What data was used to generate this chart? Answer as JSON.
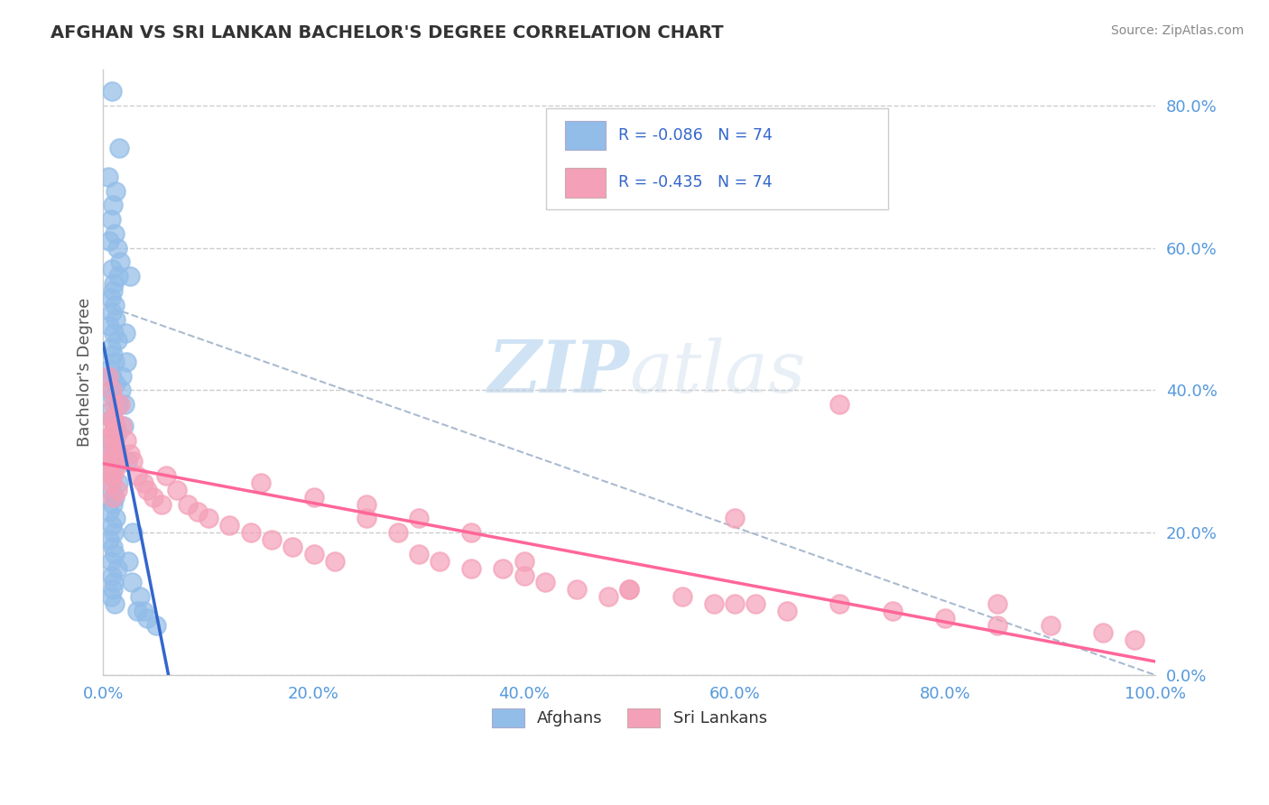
{
  "title": "AFGHAN VS SRI LANKAN BACHELOR'S DEGREE CORRELATION CHART",
  "source": "Source: ZipAtlas.com",
  "ylabel": "Bachelor's Degree",
  "watermark_zip": "ZIP",
  "watermark_atlas": "atlas",
  "legend_r1": "R = -0.086",
  "legend_n1": "N = 74",
  "legend_r2": "R = -0.435",
  "legend_n2": "N = 74",
  "legend_label1": "Afghans",
  "legend_label2": "Sri Lankans",
  "xlim": [
    0.0,
    1.0
  ],
  "ylim": [
    0.0,
    0.85
  ],
  "x_tick_labels": [
    "0.0%",
    "20.0%",
    "40.0%",
    "60.0%",
    "80.0%",
    "100.0%"
  ],
  "y_tick_labels_right": [
    "0.0%",
    "20.0%",
    "40.0%",
    "60.0%",
    "80.0%"
  ],
  "color_afghan": "#92BDE8",
  "color_srilankan": "#F4A0B8",
  "color_trend_afghan": "#3366CC",
  "color_trend_srilankan": "#FF6699",
  "color_dashed": "#AABBD0",
  "background": "#FFFFFF",
  "grid_color": "#CCCCCC",
  "afghan_x": [
    0.008,
    0.015,
    0.005,
    0.012,
    0.009,
    0.007,
    0.011,
    0.006,
    0.013,
    0.016,
    0.008,
    0.014,
    0.01,
    0.009,
    0.007,
    0.011,
    0.008,
    0.012,
    0.006,
    0.01,
    0.013,
    0.007,
    0.009,
    0.011,
    0.006,
    0.008,
    0.012,
    0.007,
    0.009,
    0.014,
    0.006,
    0.008,
    0.011,
    0.013,
    0.007,
    0.009,
    0.012,
    0.005,
    0.01,
    0.008,
    0.014,
    0.007,
    0.011,
    0.009,
    0.006,
    0.012,
    0.008,
    0.01,
    0.006,
    0.009,
    0.011,
    0.007,
    0.013,
    0.008,
    0.01,
    0.009,
    0.007,
    0.011,
    0.021,
    0.017,
    0.019,
    0.023,
    0.025,
    0.018,
    0.02,
    0.022,
    0.028,
    0.024,
    0.027,
    0.035,
    0.032,
    0.038,
    0.042,
    0.05
  ],
  "afghan_y": [
    0.82,
    0.74,
    0.7,
    0.68,
    0.66,
    0.64,
    0.62,
    0.61,
    0.6,
    0.58,
    0.57,
    0.56,
    0.55,
    0.54,
    0.53,
    0.52,
    0.51,
    0.5,
    0.49,
    0.48,
    0.47,
    0.46,
    0.45,
    0.44,
    0.43,
    0.42,
    0.41,
    0.4,
    0.39,
    0.38,
    0.37,
    0.36,
    0.35,
    0.34,
    0.33,
    0.32,
    0.31,
    0.3,
    0.29,
    0.28,
    0.27,
    0.26,
    0.25,
    0.24,
    0.23,
    0.22,
    0.21,
    0.2,
    0.19,
    0.18,
    0.17,
    0.16,
    0.15,
    0.14,
    0.13,
    0.12,
    0.11,
    0.1,
    0.48,
    0.4,
    0.35,
    0.3,
    0.56,
    0.42,
    0.38,
    0.44,
    0.2,
    0.16,
    0.13,
    0.11,
    0.09,
    0.09,
    0.08,
    0.07
  ],
  "srilankan_x": [
    0.005,
    0.008,
    0.01,
    0.007,
    0.009,
    0.006,
    0.012,
    0.008,
    0.011,
    0.014,
    0.007,
    0.01,
    0.006,
    0.009,
    0.013,
    0.008,
    0.011,
    0.012,
    0.007,
    0.009,
    0.016,
    0.018,
    0.022,
    0.025,
    0.028,
    0.032,
    0.038,
    0.042,
    0.048,
    0.055,
    0.06,
    0.07,
    0.08,
    0.09,
    0.1,
    0.12,
    0.14,
    0.16,
    0.18,
    0.2,
    0.22,
    0.25,
    0.28,
    0.3,
    0.32,
    0.35,
    0.38,
    0.4,
    0.42,
    0.45,
    0.48,
    0.5,
    0.55,
    0.58,
    0.6,
    0.62,
    0.65,
    0.7,
    0.75,
    0.8,
    0.85,
    0.9,
    0.95,
    0.98,
    0.15,
    0.2,
    0.25,
    0.3,
    0.35,
    0.4,
    0.5,
    0.6,
    0.7,
    0.85
  ],
  "srilankan_y": [
    0.42,
    0.4,
    0.38,
    0.36,
    0.34,
    0.32,
    0.35,
    0.3,
    0.33,
    0.31,
    0.28,
    0.36,
    0.3,
    0.28,
    0.26,
    0.34,
    0.32,
    0.29,
    0.27,
    0.25,
    0.38,
    0.35,
    0.33,
    0.31,
    0.3,
    0.28,
    0.27,
    0.26,
    0.25,
    0.24,
    0.28,
    0.26,
    0.24,
    0.23,
    0.22,
    0.21,
    0.2,
    0.19,
    0.18,
    0.17,
    0.16,
    0.22,
    0.2,
    0.17,
    0.16,
    0.15,
    0.15,
    0.14,
    0.13,
    0.12,
    0.11,
    0.12,
    0.11,
    0.1,
    0.22,
    0.1,
    0.09,
    0.1,
    0.09,
    0.08,
    0.07,
    0.07,
    0.06,
    0.05,
    0.27,
    0.25,
    0.24,
    0.22,
    0.2,
    0.16,
    0.12,
    0.1,
    0.38,
    0.1
  ]
}
